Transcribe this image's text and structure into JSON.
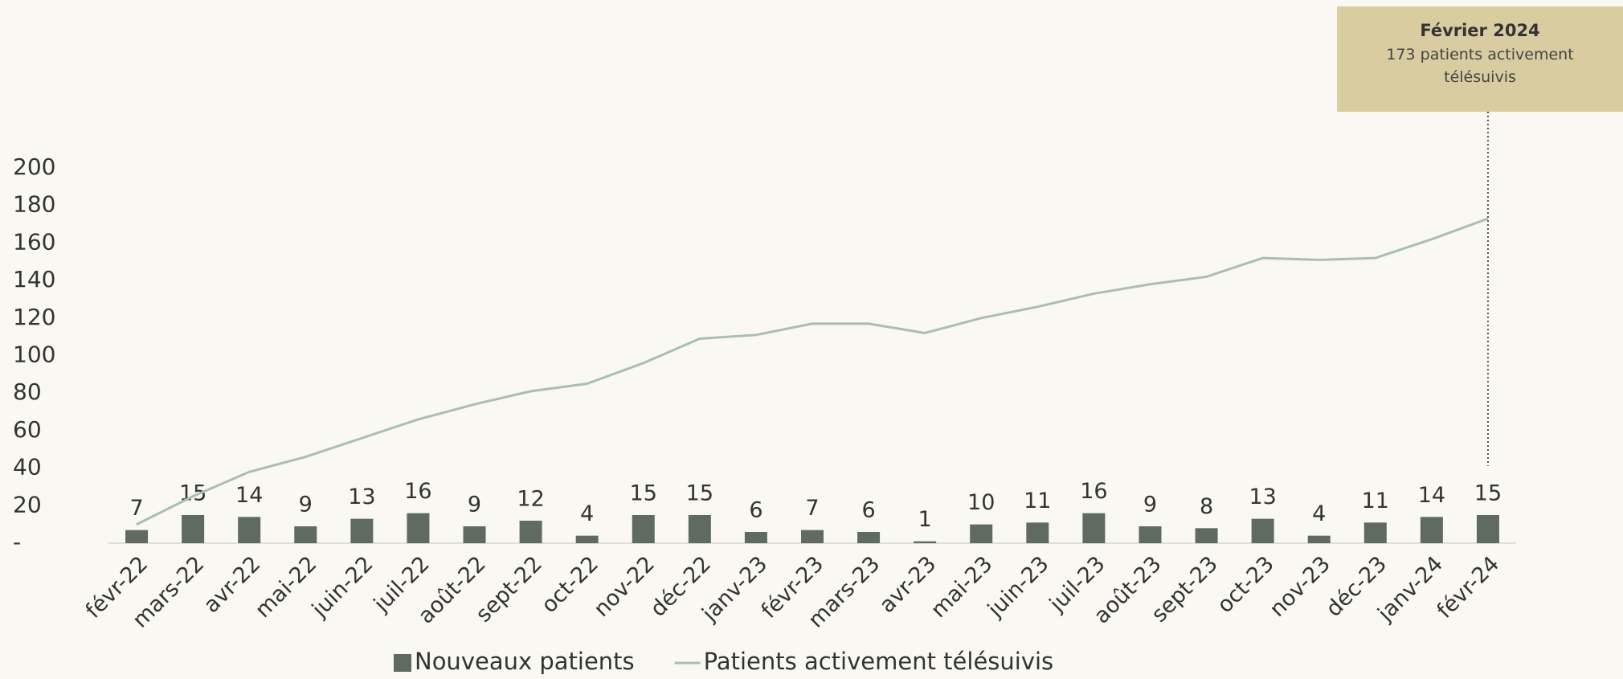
{
  "chart_data": {
    "type": "bar-line",
    "categories": [
      "févr-22",
      "mars-22",
      "avr-22",
      "mai-22",
      "juin-22",
      "juil-22",
      "août-22",
      "sept-22",
      "oct-22",
      "nov-22",
      "déc-22",
      "janv-23",
      "févr-23",
      "mars-23",
      "avr-23",
      "mai-23",
      "juin-23",
      "juil-23",
      "août-23",
      "sept-23",
      "oct-23",
      "nov-23",
      "déc-23",
      "janv-24",
      "févr-24"
    ],
    "series": [
      {
        "name": "Nouveaux patients",
        "color": "#5f6b5e",
        "type": "bar",
        "values": [
          7,
          15,
          14,
          9,
          13,
          16,
          9,
          12,
          4,
          15,
          15,
          6,
          7,
          6,
          1,
          10,
          11,
          16,
          9,
          8,
          13,
          4,
          11,
          14,
          15
        ]
      },
      {
        "name": "Patients activement télésuivis",
        "color": "#a9bfb3",
        "type": "line",
        "values": [
          10,
          25,
          38,
          46,
          56,
          66,
          74,
          81,
          85,
          96,
          109,
          111,
          117,
          117,
          112,
          120,
          126,
          133,
          138,
          142,
          152,
          151,
          152,
          162,
          173
        ]
      }
    ],
    "ylim": [
      0,
      200
    ],
    "yticks": [
      {
        "value": 0,
        "label": "-"
      },
      20,
      40,
      60,
      80,
      100,
      120,
      140,
      160,
      180,
      200
    ],
    "grid": false,
    "annotation": {
      "title": "Février 2024",
      "text": "173 patients activement télésuivis"
    }
  }
}
